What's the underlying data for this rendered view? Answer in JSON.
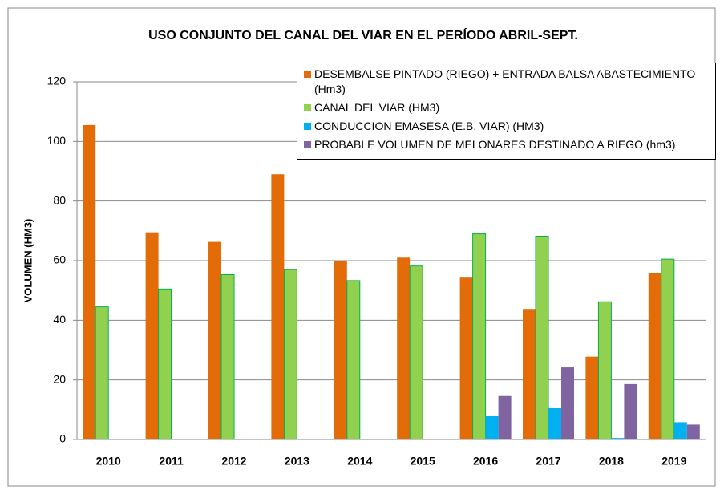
{
  "chart_data": {
    "type": "bar",
    "title": "USO CONJUNTO DEL CANAL DEL VIAR EN EL PERÍODO ABRIL-SEPT.",
    "y_label": "VOLUMEN (HM3)",
    "categories": [
      "2010",
      "2011",
      "2012",
      "2013",
      "2014",
      "2015",
      "2016",
      "2017",
      "2018",
      "2019"
    ],
    "series": [
      {
        "name": "DESEMBALSE PINTADO (RIEGO) + ENTRADA BALSA ABASTECIMIENTO (Hm3)",
        "color": "#e36c09",
        "values": [
          105.5,
          69.5,
          66.3,
          89,
          60,
          61,
          54.3,
          43.8,
          27.8,
          55.8
        ]
      },
      {
        "name": "CANAL DEL VIAR (HM3)",
        "color": "#92d050",
        "values": [
          44.5,
          50.5,
          55.3,
          57,
          53.3,
          58.2,
          69,
          68.2,
          46.2,
          60.5
        ]
      },
      {
        "name": "CONDUCCION EMASESA (E.B. VIAR) (HM3)",
        "color": "#00b0f0",
        "values": [
          0,
          0,
          0,
          0,
          0,
          0,
          7.8,
          10.5,
          0.5,
          5.8
        ]
      },
      {
        "name": "PROBABLE VOLUMEN DE MELONARES DESTINADO A RIEGO (hm3)",
        "color": "#8064a2",
        "values": [
          0,
          0,
          0,
          0,
          0,
          0,
          14.6,
          24.2,
          18.6,
          5
        ]
      }
    ],
    "ylim": [
      0,
      120
    ],
    "yticks": [
      0,
      20,
      40,
      60,
      80,
      100,
      120
    ],
    "grid": true,
    "legend": "top-right"
  }
}
